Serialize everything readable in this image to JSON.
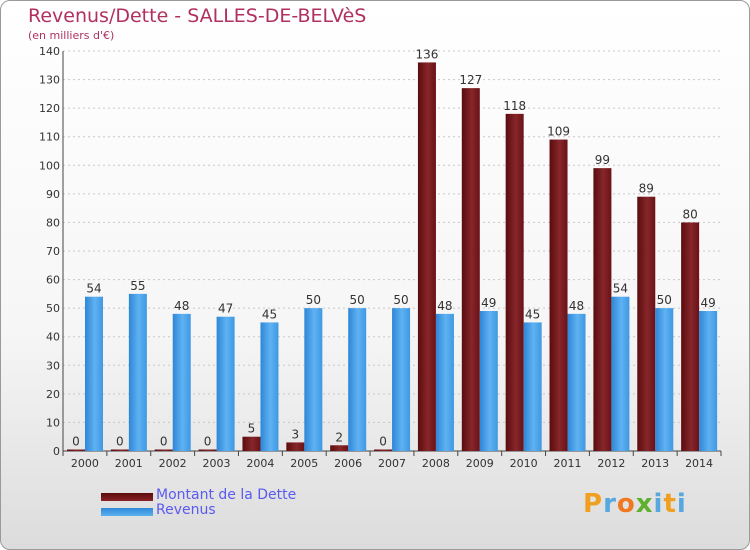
{
  "chart_data": {
    "type": "bar",
    "title": "Revenus/Dette - SALLES-DE-BELVèS",
    "subtitle": "(en milliers d'€)",
    "categories": [
      "2000",
      "2001",
      "2002",
      "2003",
      "2004",
      "2005",
      "2006",
      "2007",
      "2008",
      "2009",
      "2010",
      "2011",
      "2012",
      "2013",
      "2014"
    ],
    "series": [
      {
        "name": "Montant de la Dette",
        "color": "#7a1518",
        "values": [
          0,
          0,
          0,
          0,
          5,
          3,
          2,
          0,
          136,
          127,
          118,
          109,
          99,
          89,
          80
        ]
      },
      {
        "name": "Revenus",
        "color": "#4aa0e8",
        "values": [
          54,
          55,
          48,
          47,
          45,
          50,
          50,
          50,
          48,
          49,
          45,
          48,
          54,
          50,
          49
        ]
      }
    ],
    "ylim": [
      0,
      140
    ],
    "yticks": [
      0,
      10,
      20,
      30,
      40,
      50,
      60,
      70,
      80,
      90,
      100,
      110,
      120,
      130,
      140
    ],
    "grid": true,
    "xlabel": "",
    "ylabel": ""
  },
  "legend": {
    "debt_label": "Montant de la Dette",
    "revenue_label": "Revenus"
  },
  "logo": {
    "letters": [
      "P",
      "r",
      "o",
      "x",
      "i",
      "t",
      "i"
    ]
  }
}
